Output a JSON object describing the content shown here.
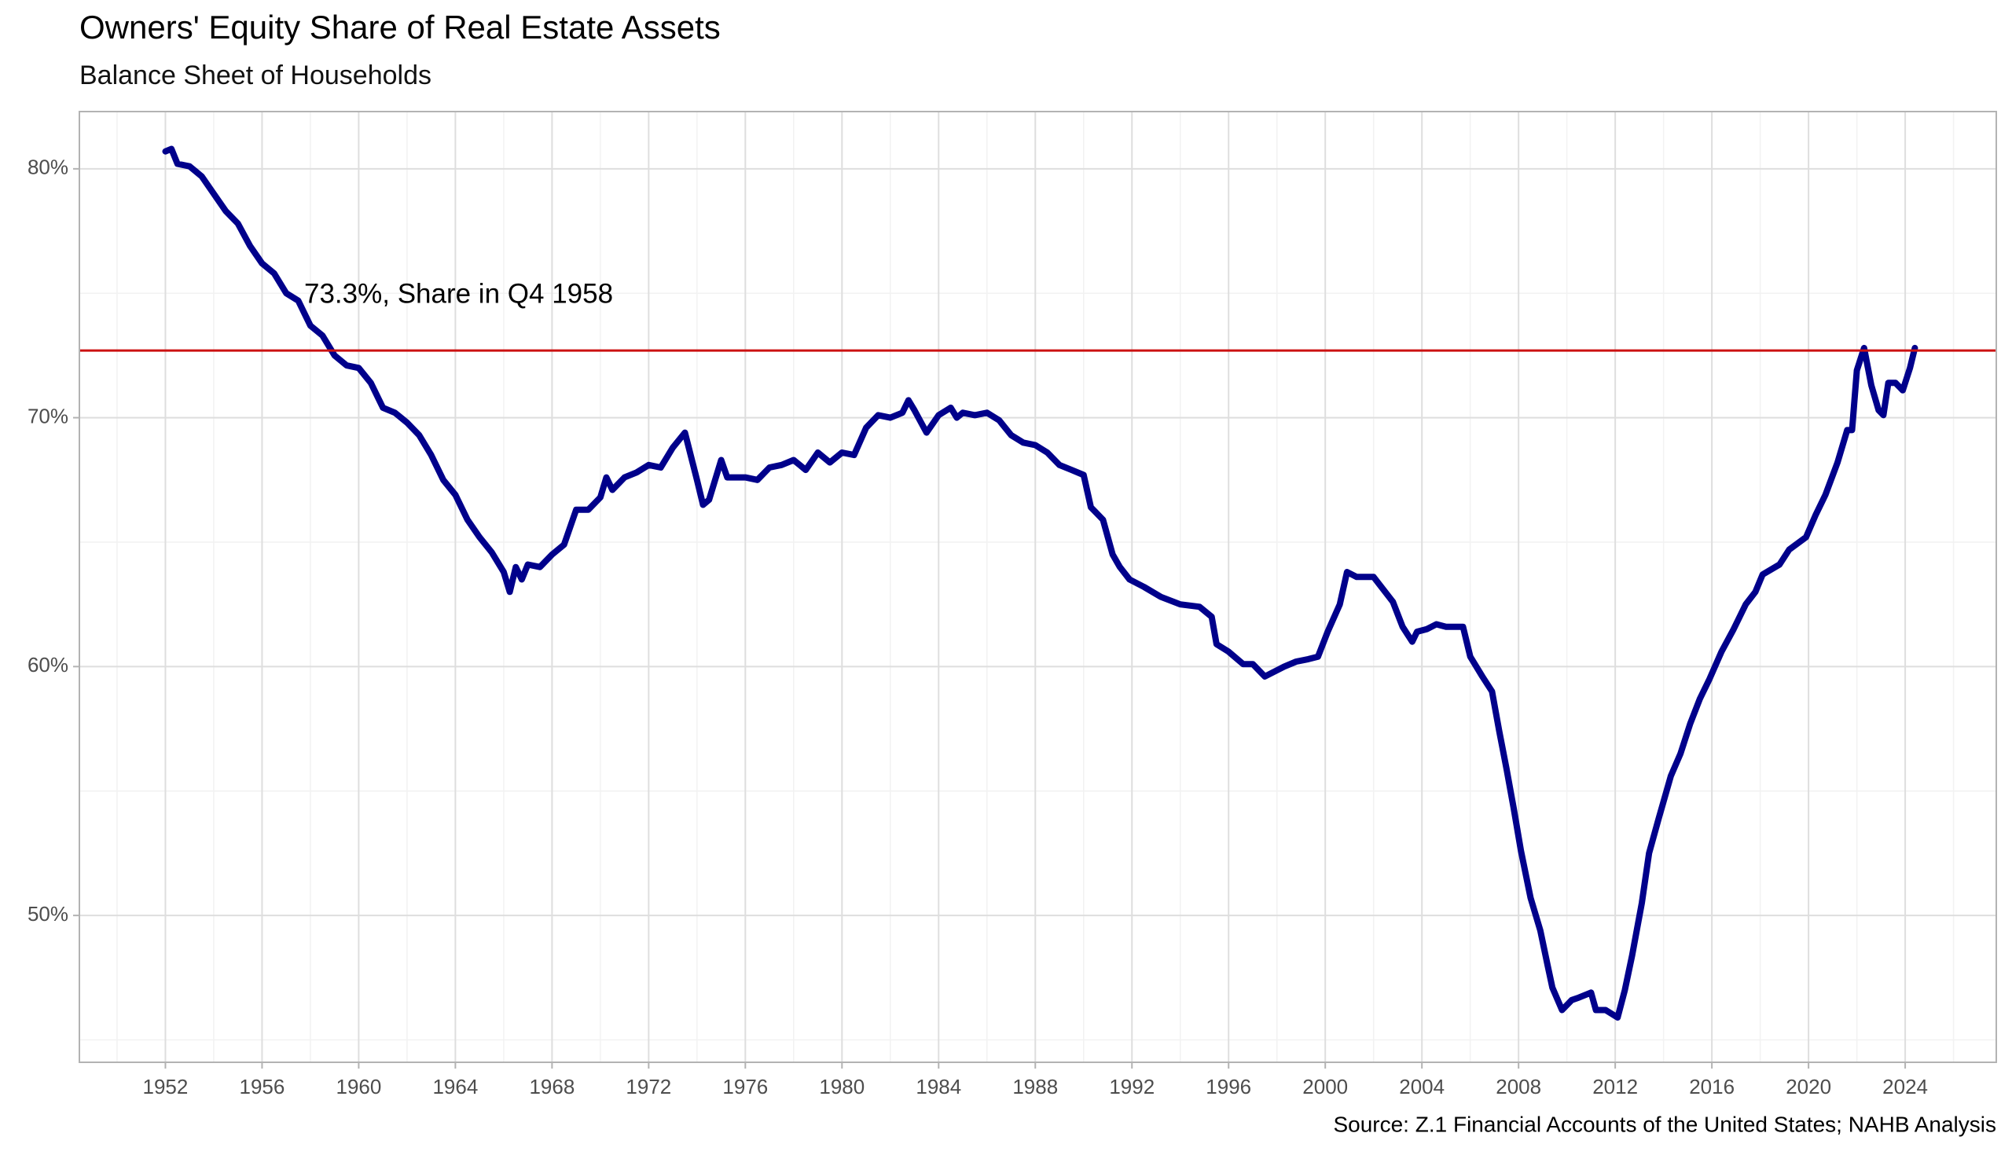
{
  "chart_data": {
    "type": "line",
    "title": "Owners' Equity Share of Real Estate Assets",
    "subtitle": "Balance Sheet of Households",
    "source": "Source: Z.1 Financial Accounts of the United States; NAHB Analysis",
    "annotation": "73.3%, Share in Q4 1958",
    "color": "#00008b",
    "reference_line": {
      "value": 72.7,
      "color": "#cc1111"
    },
    "xlim": [
      1948.44,
      2027.77
    ],
    "ylim": [
      44.1,
      82.3
    ],
    "xticks": [
      1952,
      1956,
      1960,
      1964,
      1968,
      1972,
      1976,
      1980,
      1984,
      1988,
      1992,
      1996,
      2000,
      2004,
      2008,
      2012,
      2016,
      2020,
      2024
    ],
    "x_minor_ticks": [
      1950,
      1954,
      1958,
      1962,
      1966,
      1970,
      1974,
      1978,
      1982,
      1986,
      1990,
      1994,
      1998,
      2002,
      2006,
      2010,
      2014,
      2018,
      2022,
      2026
    ],
    "yticks": [
      {
        "value": 50,
        "label": "50%"
      },
      {
        "value": 60,
        "label": "60%"
      },
      {
        "value": 70,
        "label": "70%"
      },
      {
        "value": 80,
        "label": "80%"
      }
    ],
    "y_minor_ticks": [
      45,
      55,
      65,
      75
    ],
    "grid": true,
    "x": [
      1952.0,
      1952.25,
      1952.5,
      1953.0,
      1953.5,
      1954.0,
      1954.5,
      1955.0,
      1955.5,
      1956.0,
      1956.5,
      1957.0,
      1957.5,
      1958.0,
      1958.5,
      1959.0,
      1959.5,
      1960.0,
      1960.5,
      1961.0,
      1961.5,
      1962.0,
      1962.5,
      1963.0,
      1963.5,
      1964.0,
      1964.5,
      1965.0,
      1965.5,
      1966.0,
      1966.25,
      1966.5,
      1966.75,
      1967.0,
      1967.5,
      1968.0,
      1968.5,
      1969.0,
      1969.5,
      1970.0,
      1970.25,
      1970.5,
      1971.0,
      1971.5,
      1972.0,
      1972.5,
      1973.0,
      1973.5,
      1974.0,
      1974.25,
      1974.5,
      1975.0,
      1975.25,
      1976.0,
      1976.5,
      1977.0,
      1977.5,
      1978.0,
      1978.5,
      1979.0,
      1979.5,
      1980.0,
      1980.5,
      1981.0,
      1981.5,
      1982.0,
      1982.5,
      1982.75,
      1983.0,
      1983.5,
      1984.0,
      1984.5,
      1984.75,
      1985.0,
      1985.5,
      1986.0,
      1986.5,
      1987.0,
      1987.5,
      1988.0,
      1988.5,
      1989.0,
      1989.5,
      1990.0,
      1990.3,
      1990.8,
      1991.2,
      1991.5,
      1991.9,
      1992.5,
      1993.2,
      1994.0,
      1994.8,
      1995.3,
      1995.5,
      1996.0,
      1996.6,
      1997.0,
      1997.5,
      1998.3,
      1998.8,
      1999.3,
      1999.7,
      2000.1,
      2000.6,
      2000.9,
      2001.3,
      2002.0,
      2002.8,
      2003.2,
      2003.6,
      2003.8,
      2004.2,
      2004.6,
      2005.0,
      2005.7,
      2006.0,
      2006.5,
      2006.9,
      2007.2,
      2007.5,
      2007.8,
      2008.1,
      2008.5,
      2008.9,
      2009.2,
      2009.4,
      2009.8,
      2010.2,
      2010.5,
      2011.0,
      2011.2,
      2011.6,
      2012.1,
      2012.4,
      2012.7,
      2013.1,
      2013.4,
      2013.8,
      2014.3,
      2014.7,
      2015.1,
      2015.5,
      2015.9,
      2016.4,
      2016.9,
      2017.4,
      2017.8,
      2018.1,
      2018.8,
      2019.2,
      2019.9,
      2020.3,
      2020.7,
      2021.2,
      2021.6,
      2021.8,
      2022.0,
      2022.3,
      2022.6,
      2022.9,
      2023.1,
      2023.3,
      2023.6,
      2023.9,
      2024.2,
      2024.4
    ],
    "values": [
      80.7,
      80.8,
      80.2,
      80.1,
      79.7,
      79.0,
      78.3,
      77.8,
      76.9,
      76.2,
      75.8,
      75.0,
      74.7,
      73.7,
      73.3,
      72.5,
      72.1,
      72.0,
      71.4,
      70.4,
      70.2,
      69.8,
      69.3,
      68.5,
      67.5,
      66.9,
      65.9,
      65.2,
      64.6,
      63.8,
      63.0,
      64.0,
      63.5,
      64.1,
      64.0,
      64.5,
      64.9,
      66.3,
      66.3,
      66.8,
      67.6,
      67.1,
      67.6,
      67.8,
      68.1,
      68.0,
      68.8,
      69.4,
      67.5,
      66.5,
      66.7,
      68.3,
      67.6,
      67.6,
      67.5,
      68.0,
      68.1,
      68.3,
      67.9,
      68.6,
      68.2,
      68.6,
      68.5,
      69.6,
      70.1,
      70.0,
      70.2,
      70.7,
      70.3,
      69.4,
      70.1,
      70.4,
      70.0,
      70.2,
      70.1,
      70.2,
      69.9,
      69.3,
      69.0,
      68.9,
      68.6,
      68.1,
      67.9,
      67.7,
      66.4,
      65.9,
      64.5,
      64.0,
      63.5,
      63.2,
      62.8,
      62.5,
      62.4,
      62.0,
      60.9,
      60.6,
      60.1,
      60.1,
      59.6,
      60.0,
      60.2,
      60.3,
      60.4,
      61.4,
      62.5,
      63.8,
      63.6,
      63.6,
      62.6,
      61.6,
      61.0,
      61.4,
      61.5,
      61.7,
      61.6,
      61.6,
      60.4,
      59.6,
      59.0,
      57.4,
      55.9,
      54.3,
      52.6,
      50.7,
      49.4,
      48.0,
      47.1,
      46.2,
      46.6,
      46.7,
      46.9,
      46.2,
      46.2,
      45.9,
      47.0,
      48.4,
      50.5,
      52.5,
      53.9,
      55.6,
      56.5,
      57.7,
      58.7,
      59.5,
      60.6,
      61.5,
      62.5,
      63.0,
      63.7,
      64.1,
      64.7,
      65.2,
      66.1,
      66.9,
      68.2,
      69.5,
      69.5,
      71.9,
      72.8,
      71.3,
      70.3,
      70.1,
      71.4,
      71.4,
      71.1,
      72.0,
      72.8
    ]
  }
}
